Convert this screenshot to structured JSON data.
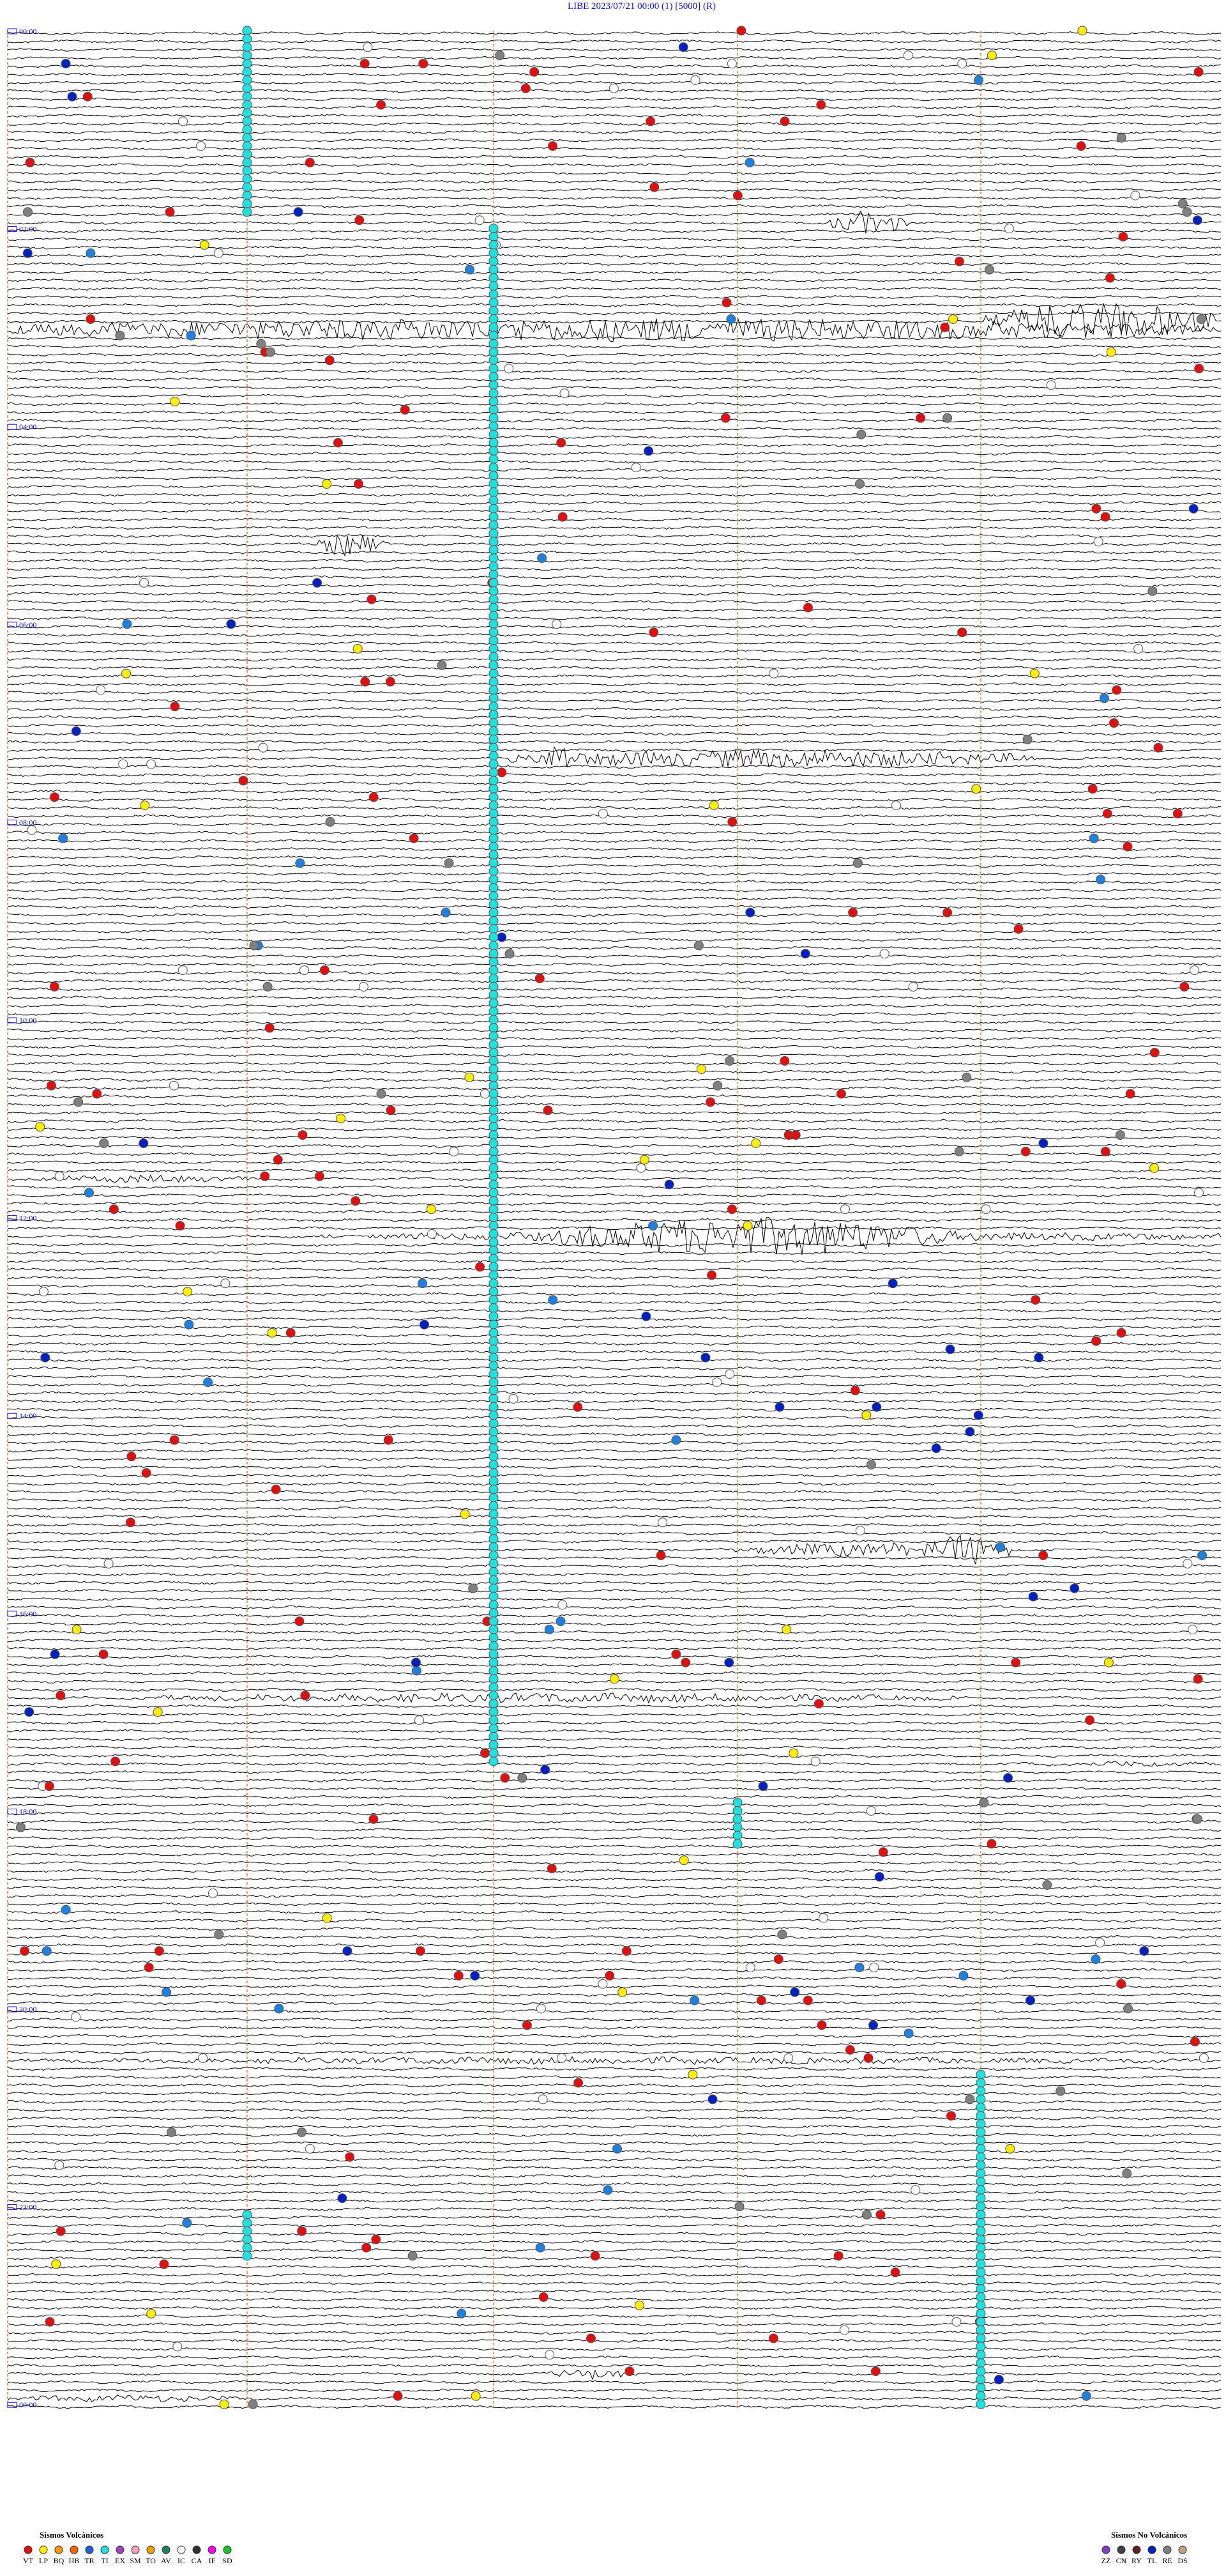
{
  "header": {
    "title": "LIBE    2023/07/21 00:00      (1)      [5000]   (R)"
  },
  "time_labels": [
    "00:00",
    "02:00",
    "04:00",
    "06:00",
    "08:00",
    "10:00",
    "12:00",
    "14:00",
    "16:00",
    "18:00",
    "20:00",
    "22:00",
    "00:00"
  ],
  "legend": {
    "volcanic": {
      "title": "Sismos Volcánicos",
      "items": [
        {
          "code": "VT",
          "color": "#e01010"
        },
        {
          "code": "LP",
          "color": "#ffee00"
        },
        {
          "code": "BQ",
          "color": "#ff9900"
        },
        {
          "code": "HB",
          "color": "#ff6600"
        },
        {
          "code": "TR",
          "color": "#2060e0"
        },
        {
          "code": "TI",
          "color": "#20e0e0"
        },
        {
          "code": "EX",
          "color": "#a040c0"
        },
        {
          "code": "SM",
          "color": "#f0a0c0"
        },
        {
          "code": "TO",
          "color": "#f0a000"
        },
        {
          "code": "AV",
          "color": "#208060"
        },
        {
          "code": "IC",
          "color": "#ffffff"
        },
        {
          "code": "CA",
          "color": "#303030"
        },
        {
          "code": "IF",
          "color": "#ff00ff"
        },
        {
          "code": "SD",
          "color": "#20c020"
        }
      ]
    },
    "non_volcanic": {
      "title": "Sismos No Volcánicos",
      "items": [
        {
          "code": "ZZ",
          "color": "#8040c0"
        },
        {
          "code": "CN",
          "color": "#404040"
        },
        {
          "code": "RY",
          "color": "#602020"
        },
        {
          "code": "TL",
          "color": "#0020c0"
        },
        {
          "code": "RE",
          "color": "#808080"
        },
        {
          "code": "DS",
          "color": "#c0a080"
        }
      ]
    }
  }
}
